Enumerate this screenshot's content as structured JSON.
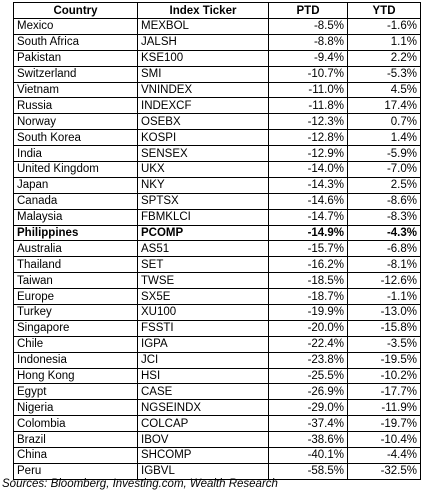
{
  "table": {
    "headers": {
      "country": "Country",
      "ticker": "Index Ticker",
      "ptd": "PTD",
      "ytd": "YTD"
    },
    "highlight_country": "Philippines",
    "rows": [
      {
        "country": "Mexico",
        "ticker": "MEXBOL",
        "ptd": "-8.5%",
        "ytd": "-1.6%"
      },
      {
        "country": "South Africa",
        "ticker": "JALSH",
        "ptd": "-8.8%",
        "ytd": "1.1%"
      },
      {
        "country": "Pakistan",
        "ticker": "KSE100",
        "ptd": "-9.4%",
        "ytd": "2.2%"
      },
      {
        "country": "Switzerland",
        "ticker": "SMI",
        "ptd": "-10.7%",
        "ytd": "-5.3%"
      },
      {
        "country": "Vietnam",
        "ticker": "VNINDEX",
        "ptd": "-11.0%",
        "ytd": "4.5%"
      },
      {
        "country": "Russia",
        "ticker": "INDEXCF",
        "ptd": "-11.8%",
        "ytd": "17.4%"
      },
      {
        "country": "Norway",
        "ticker": "OSEBX",
        "ptd": "-12.3%",
        "ytd": "0.7%"
      },
      {
        "country": "South Korea",
        "ticker": "KOSPI",
        "ptd": "-12.8%",
        "ytd": "1.4%"
      },
      {
        "country": "India",
        "ticker": "SENSEX",
        "ptd": "-12.9%",
        "ytd": "-5.9%"
      },
      {
        "country": "United Kingdom",
        "ticker": "UKX",
        "ptd": "-14.0%",
        "ytd": "-7.0%"
      },
      {
        "country": "Japan",
        "ticker": "NKY",
        "ptd": "-14.3%",
        "ytd": "2.5%"
      },
      {
        "country": "Canada",
        "ticker": "SPTSX",
        "ptd": "-14.6%",
        "ytd": "-8.6%"
      },
      {
        "country": "Malaysia",
        "ticker": "FBMKLCI",
        "ptd": "-14.7%",
        "ytd": "-8.3%"
      },
      {
        "country": "Philippines",
        "ticker": "PCOMP",
        "ptd": "-14.9%",
        "ytd": "-4.3%"
      },
      {
        "country": "Australia",
        "ticker": "AS51",
        "ptd": "-15.7%",
        "ytd": "-6.8%"
      },
      {
        "country": "Thailand",
        "ticker": "SET",
        "ptd": "-16.2%",
        "ytd": "-8.1%"
      },
      {
        "country": "Taiwan",
        "ticker": "TWSE",
        "ptd": "-18.5%",
        "ytd": "-12.6%"
      },
      {
        "country": "Europe",
        "ticker": "SX5E",
        "ptd": "-18.7%",
        "ytd": "-1.1%"
      },
      {
        "country": "Turkey",
        "ticker": "XU100",
        "ptd": "-19.9%",
        "ytd": "-13.0%"
      },
      {
        "country": "Singapore",
        "ticker": "FSSTI",
        "ptd": "-20.0%",
        "ytd": "-15.8%"
      },
      {
        "country": "Chile",
        "ticker": "IGPA",
        "ptd": "-22.4%",
        "ytd": "-3.5%"
      },
      {
        "country": "Indonesia",
        "ticker": "JCI",
        "ptd": "-23.8%",
        "ytd": "-19.5%"
      },
      {
        "country": "Hong Kong",
        "ticker": "HSI",
        "ptd": "-25.5%",
        "ytd": "-10.2%"
      },
      {
        "country": "Egypt",
        "ticker": "CASE",
        "ptd": "-26.9%",
        "ytd": "-17.7%"
      },
      {
        "country": "Nigeria",
        "ticker": "NGSEINDX",
        "ptd": "-29.0%",
        "ytd": "-11.9%"
      },
      {
        "country": "Colombia",
        "ticker": "COLCAP",
        "ptd": "-37.4%",
        "ytd": "-19.7%"
      },
      {
        "country": "Brazil",
        "ticker": "IBOV",
        "ptd": "-38.6%",
        "ytd": "-10.4%"
      },
      {
        "country": "China",
        "ticker": "SHCOMP",
        "ptd": "-40.1%",
        "ytd": "-4.4%"
      },
      {
        "country": "Peru",
        "ticker": "IGBVL",
        "ptd": "-58.5%",
        "ytd": "-32.5%"
      }
    ]
  },
  "source": "Sources: Bloomberg, Investing.com, Wealth Research"
}
